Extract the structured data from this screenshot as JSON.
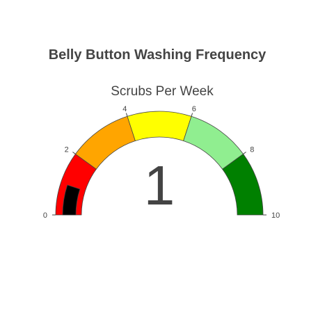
{
  "chart_data": {
    "type": "gauge",
    "title": "Belly Button Washing Frequency",
    "gauge_title": "Scrubs Per Week",
    "value": 1,
    "value_display": "1",
    "range": [
      0,
      10
    ],
    "tick_values": [
      0,
      2,
      4,
      6,
      8,
      10
    ],
    "tick_labels": [
      "0",
      "2",
      "4",
      "6",
      "8",
      "10"
    ],
    "steps": [
      {
        "from": 0,
        "to": 2,
        "color": "#ff0000"
      },
      {
        "from": 2,
        "to": 4,
        "color": "#ffa500"
      },
      {
        "from": 4,
        "to": 6,
        "color": "#ffff00"
      },
      {
        "from": 6,
        "to": 8,
        "color": "#90ee90"
      },
      {
        "from": 8,
        "to": 10,
        "color": "#008000"
      }
    ],
    "bar_color": "#000000"
  }
}
